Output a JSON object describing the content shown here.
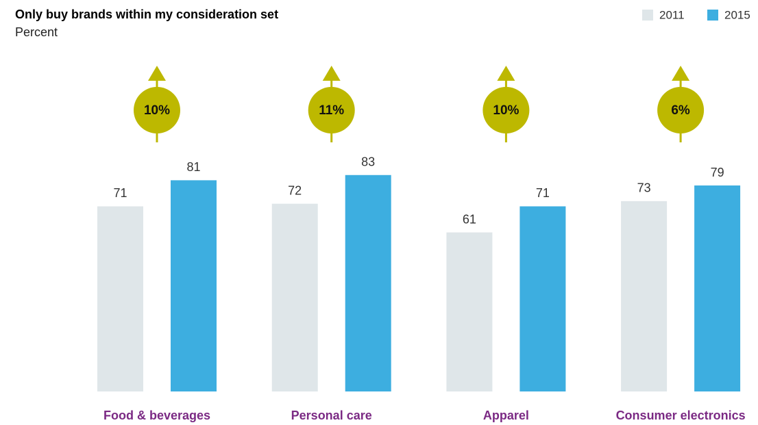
{
  "chart_data": {
    "type": "bar",
    "title": "Only buy brands within my consideration set",
    "subtitle": "Percent",
    "categories": [
      "Food & beverages",
      "Personal care",
      "Apparel",
      "Consumer electronics"
    ],
    "series": [
      {
        "name": "2011",
        "color": "#dfe6e9",
        "values": [
          71,
          72,
          61,
          73
        ]
      },
      {
        "name": "2015",
        "color": "#3daee0",
        "values": [
          81,
          83,
          71,
          79
        ]
      }
    ],
    "annotations": [
      "10%",
      "11%",
      "10%",
      "6%"
    ],
    "annotation_color": "#bdb800",
    "category_color": "#7b2a84",
    "legend": "top-right"
  }
}
